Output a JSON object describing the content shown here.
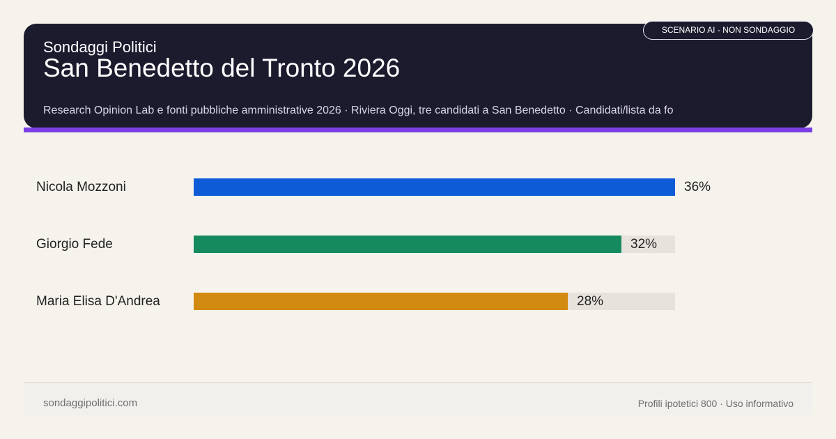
{
  "header": {
    "brand": "Sondaggi Politici",
    "title": "San Benedetto del Tronto 2026",
    "sources": "Research Opinion Lab e fonti pubbliche amministrative 2026 · Riviera Oggi, tre candidati a San Benedetto · Candidati/lista da fo",
    "badge": "SCENARIO AI - NON SONDAGGIO"
  },
  "footer": {
    "site": "sondaggipolitici.com",
    "note": "Profili ipotetici 800 · Uso informativo"
  },
  "chart_data": {
    "type": "bar",
    "orientation": "horizontal",
    "categories": [
      "Nicola Mozzoni",
      "Giorgio Fede",
      "Maria Elisa D'Andrea"
    ],
    "values": [
      36,
      32,
      28
    ],
    "value_labels": [
      "36%",
      "32%",
      "28%"
    ],
    "colors": [
      "#0e5bd8",
      "#168a5f",
      "#d28a10"
    ],
    "track_color": "#e7e2dc",
    "xlim": [
      0,
      36
    ],
    "title": "",
    "xlabel": "",
    "ylabel": "",
    "grid": false,
    "legend": "none"
  }
}
